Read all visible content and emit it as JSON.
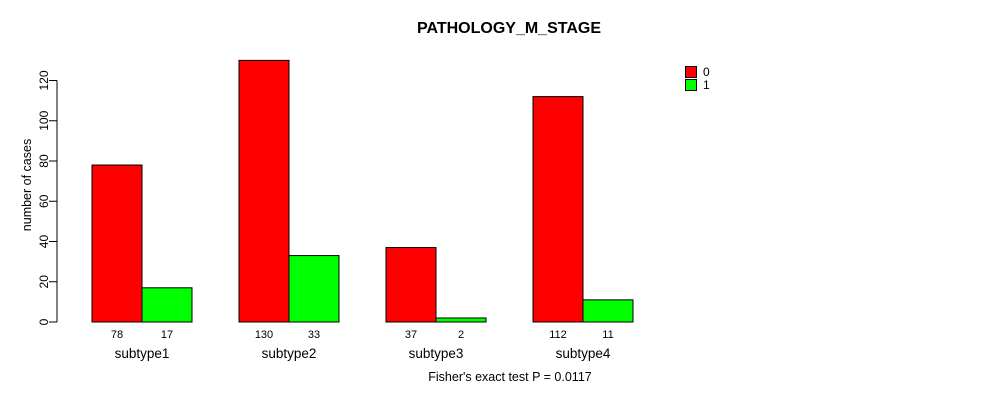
{
  "chart_data": {
    "type": "bar",
    "title": "PATHOLOGY_M_STAGE",
    "categories": [
      "subtype1",
      "subtype2",
      "subtype3",
      "subtype4"
    ],
    "series": [
      {
        "name": "0",
        "color": "#ff0000",
        "values": [
          78,
          130,
          37,
          112
        ]
      },
      {
        "name": "1",
        "color": "#00ff00",
        "values": [
          17,
          33,
          2,
          11
        ]
      }
    ],
    "xlabel": "",
    "ylabel": "number of cases",
    "yticks": [
      0,
      20,
      40,
      60,
      80,
      100,
      120
    ],
    "ylim": [
      0,
      134
    ],
    "grid": false,
    "legend_position": "top-right",
    "bar_value_labels": true,
    "annotation": "Fisher's exact test P = 0.0117"
  }
}
